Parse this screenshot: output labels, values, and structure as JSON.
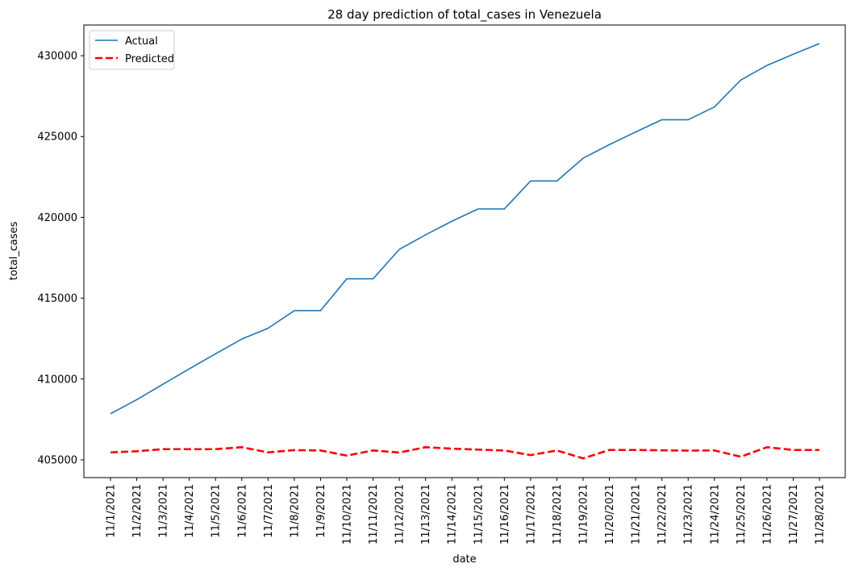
{
  "chart_data": {
    "type": "line",
    "title": "28 day prediction of total_cases in Venezuela",
    "xlabel": "date",
    "ylabel": "total_cases",
    "categories": [
      "11/1/2021",
      "11/2/2021",
      "11/3/2021",
      "11/4/2021",
      "11/5/2021",
      "11/6/2021",
      "11/7/2021",
      "11/8/2021",
      "11/9/2021",
      "11/10/2021",
      "11/11/2021",
      "11/12/2021",
      "11/13/2021",
      "11/14/2021",
      "11/15/2021",
      "11/16/2021",
      "11/17/2021",
      "11/18/2021",
      "11/19/2021",
      "11/20/2021",
      "11/21/2021",
      "11/22/2021",
      "11/23/2021",
      "11/24/2021",
      "11/25/2021",
      "11/26/2021",
      "11/27/2021",
      "11/28/2021"
    ],
    "series": [
      {
        "name": "Actual",
        "color": "#1f77b4",
        "style": "solid",
        "values": [
          407850,
          408720,
          409680,
          410630,
          411560,
          412470,
          413140,
          414230,
          414230,
          416200,
          416200,
          418020,
          418920,
          419760,
          420520,
          420520,
          422250,
          422250,
          423660,
          424500,
          425280,
          426040,
          426040,
          426830,
          428490,
          429400,
          430090,
          430750
        ]
      },
      {
        "name": "Predicted",
        "color": "#ff0000",
        "style": "dashed",
        "values": [
          405460,
          405530,
          405660,
          405660,
          405660,
          405780,
          405460,
          405600,
          405580,
          405260,
          405580,
          405450,
          405780,
          405690,
          405630,
          405580,
          405290,
          405580,
          405090,
          405610,
          405610,
          405590,
          405570,
          405580,
          405190,
          405780,
          405610,
          405610
        ]
      }
    ],
    "yticks": [
      405000,
      410000,
      415000,
      420000,
      425000,
      430000
    ],
    "ylim": [
      403900,
      431900
    ],
    "legend_position": "top-left"
  }
}
